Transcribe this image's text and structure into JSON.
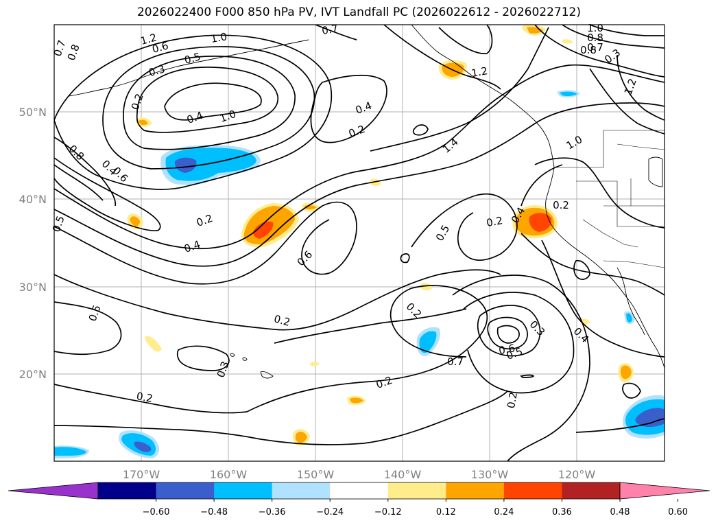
{
  "title": "2026022400 F000 850 hPa PV, IVT Landfall PC (2026022612 - 2026022712)",
  "axes": {
    "lat_labels": [
      "50°N",
      "40°N",
      "30°N",
      "20°N"
    ],
    "lon_labels": [
      "170°W",
      "160°W",
      "150°W",
      "140°W",
      "130°W",
      "120°W"
    ]
  },
  "chart_data": {
    "type": "map",
    "title": "2026022400 F000 850 hPa PV, IVT Landfall PC (2026022612 - 2026022712)",
    "extent": {
      "lon": [
        -180,
        -110
      ],
      "lat": [
        10,
        60
      ]
    },
    "grid": true,
    "contour_variable": "850 hPa PV",
    "contour_labels": [
      "0.7",
      "1.2",
      "0.8",
      "1.0",
      "0.6",
      "0.5",
      "0.3",
      "0.2",
      "0.4",
      "1.0",
      "0.7",
      "0.4",
      "0.2",
      "1.4",
      "1.2",
      "1.0",
      "0.8",
      "0.7",
      "0.8",
      "0.3",
      "1.2",
      "1.0",
      "0.8",
      "0.4",
      "0.6",
      "0.5",
      "0.2",
      "0.4",
      "0.6",
      "0.5",
      "0.2",
      "0.4",
      "0.2",
      "0.5",
      "0.2",
      "0.2",
      "0.3",
      "0.7",
      "0.6",
      "0.5",
      "0.3",
      "0.4",
      "0.2",
      "0.2",
      "0.2"
    ],
    "shading_variable": "IVT Landfall PC",
    "colorbar": {
      "levels": [
        -0.6,
        -0.48,
        -0.36,
        -0.24,
        -0.12,
        0.12,
        0.24,
        0.36,
        0.48,
        0.6
      ],
      "tick_labels": [
        "−0.60",
        "−0.48",
        "−0.36",
        "−0.24",
        "−0.12",
        "0.12",
        "0.24",
        "0.36",
        "0.48",
        "0.60"
      ],
      "colors": [
        "#9932cc",
        "#00008b",
        "#3a5fcd",
        "#00bfff",
        "#b0e2ff",
        "#ffffff",
        "#ffec8b",
        "#ffa500",
        "#ff4500",
        "#b22222",
        "#ff82ab"
      ],
      "extend": "both"
    }
  }
}
